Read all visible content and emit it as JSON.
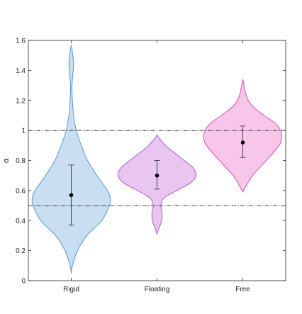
{
  "chart_data": {
    "type": "violin",
    "title": "",
    "xlabel": "",
    "ylabel": "α",
    "ylim": [
      0,
      1.6
    ],
    "yticks": [
      0,
      0.2,
      0.4,
      0.6,
      0.8,
      1,
      1.2,
      1.4,
      1.6
    ],
    "ytick_labels": [
      "0",
      "0.2",
      "0.4",
      "0.6",
      "0.8",
      "1",
      "1.2",
      "1.4",
      "1.6"
    ],
    "categories": [
      "Rigid",
      "Floating",
      "Free"
    ],
    "grid": false,
    "reference_lines": [
      {
        "y": 1.0,
        "style": "dash-dot",
        "color": "#2b2b2b"
      },
      {
        "y": 0.5,
        "style": "dash-dot",
        "color": "#2b2b2b"
      }
    ],
    "series": [
      {
        "category": "Rigid",
        "fill": "#c9def0",
        "stroke": "#4a90c9",
        "mean": 0.57,
        "error_low": 0.37,
        "error_high": 0.77,
        "density": [
          [
            0.05,
            0.0
          ],
          [
            0.1,
            0.03
          ],
          [
            0.2,
            0.16
          ],
          [
            0.3,
            0.4
          ],
          [
            0.4,
            0.78
          ],
          [
            0.5,
            0.98
          ],
          [
            0.55,
            1.0
          ],
          [
            0.6,
            0.93
          ],
          [
            0.7,
            0.66
          ],
          [
            0.8,
            0.42
          ],
          [
            0.9,
            0.26
          ],
          [
            1.0,
            0.13
          ],
          [
            1.1,
            0.06
          ],
          [
            1.2,
            0.03
          ],
          [
            1.3,
            0.02
          ],
          [
            1.4,
            0.05
          ],
          [
            1.45,
            0.06
          ],
          [
            1.5,
            0.04
          ],
          [
            1.57,
            0.0
          ]
        ]
      },
      {
        "category": "Floating",
        "fill": "#e8c6f0",
        "stroke": "#a94bd1",
        "mean": 0.7,
        "error_low": 0.61,
        "error_high": 0.8,
        "density": [
          [
            0.31,
            0.0
          ],
          [
            0.35,
            0.05
          ],
          [
            0.4,
            0.12
          ],
          [
            0.45,
            0.13
          ],
          [
            0.5,
            0.1
          ],
          [
            0.55,
            0.18
          ],
          [
            0.6,
            0.5
          ],
          [
            0.65,
            0.85
          ],
          [
            0.7,
            1.0
          ],
          [
            0.75,
            0.93
          ],
          [
            0.8,
            0.7
          ],
          [
            0.85,
            0.45
          ],
          [
            0.9,
            0.22
          ],
          [
            0.95,
            0.05
          ],
          [
            0.97,
            0.0
          ]
        ]
      },
      {
        "category": "Free",
        "fill": "#f7c6e8",
        "stroke": "#d63fb5",
        "mean": 0.92,
        "error_low": 0.82,
        "error_high": 1.03,
        "density": [
          [
            0.59,
            0.0
          ],
          [
            0.62,
            0.06
          ],
          [
            0.7,
            0.25
          ],
          [
            0.8,
            0.6
          ],
          [
            0.9,
            0.93
          ],
          [
            0.95,
            1.0
          ],
          [
            1.0,
            0.97
          ],
          [
            1.05,
            0.82
          ],
          [
            1.1,
            0.55
          ],
          [
            1.15,
            0.3
          ],
          [
            1.2,
            0.14
          ],
          [
            1.25,
            0.07
          ],
          [
            1.3,
            0.03
          ],
          [
            1.34,
            0.0
          ]
        ]
      }
    ]
  }
}
